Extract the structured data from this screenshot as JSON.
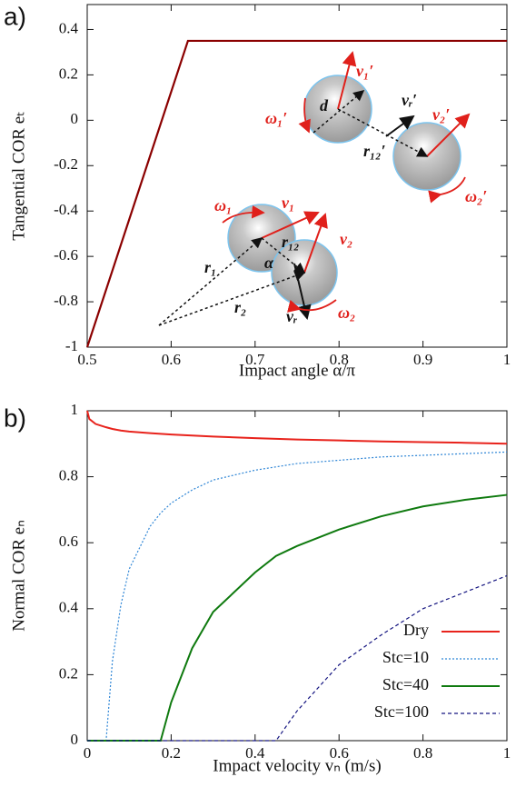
{
  "chart_data": [
    {
      "type": "line",
      "panel_label": "a)",
      "x_label": "Impact angle α/π",
      "y_label": "Tangential COR eₜ",
      "x": [
        0.5,
        0.62,
        1.0
      ],
      "series": [
        {
          "name": "e_t",
          "color": "#8b0000",
          "values": [
            -1,
            0.35,
            0.35
          ]
        }
      ],
      "xlim": [
        0.5,
        1.0
      ],
      "ylim": [
        -1,
        0.51
      ],
      "xticks": [
        0.5,
        0.6,
        0.7,
        0.8,
        0.9,
        1
      ],
      "yticks": [
        0.4,
        0.2,
        0,
        -0.2,
        -0.4,
        -0.6,
        -0.8,
        -1
      ],
      "annotations": [
        "v₁′",
        "d",
        "vᵣ′",
        "v₂′",
        "ω₁′",
        "r₁₂′",
        "ω₂′",
        "ω₁",
        "v₁",
        "v₂",
        "r₁₂",
        "r₁",
        "α",
        "r₂",
        "vᵣ",
        "ω₂"
      ]
    },
    {
      "type": "line",
      "panel_label": "b)",
      "x_label": "Impact velocity vₙ (m/s)",
      "y_label": "Normal COR eₙ",
      "x": [
        0,
        0.005,
        0.02,
        0.045,
        0.06,
        0.08,
        0.1,
        0.15,
        0.175,
        0.2,
        0.25,
        0.3,
        0.4,
        0.45,
        0.5,
        0.6,
        0.7,
        0.8,
        0.9,
        1.0
      ],
      "series": [
        {
          "name": "Dry",
          "color": "#e8231c",
          "dash": "solid",
          "width": 2,
          "values": [
            1.0,
            0.975,
            0.96,
            0.95,
            0.945,
            0.94,
            0.937,
            0.932,
            0.93,
            0.928,
            0.925,
            0.922,
            0.917,
            0.915,
            0.913,
            0.91,
            0.907,
            0.905,
            0.903,
            0.9
          ]
        },
        {
          "name": "Stc=10",
          "color": "#2f86d6",
          "dash": "dotted",
          "width": 1.2,
          "values": [
            0,
            0,
            0,
            0,
            0.24,
            0.41,
            0.52,
            0.65,
            0.69,
            0.72,
            0.76,
            0.79,
            0.82,
            0.83,
            0.84,
            0.85,
            0.86,
            0.865,
            0.87,
            0.875
          ]
        },
        {
          "name": "Stc=40",
          "color": "#0f7a0f",
          "dash": "solid",
          "width": 2,
          "values": [
            0,
            0,
            0,
            0,
            0,
            0,
            0,
            0,
            0,
            0.116,
            0.28,
            0.39,
            0.51,
            0.56,
            0.59,
            0.64,
            0.68,
            0.71,
            0.73,
            0.745
          ]
        },
        {
          "name": "Stc=100",
          "color": "#141480",
          "dash": "dashed",
          "width": 1.2,
          "values": [
            0,
            0,
            0,
            0,
            0,
            0,
            0,
            0,
            0,
            0,
            0,
            0,
            0,
            0,
            0.09,
            0.23,
            0.32,
            0.4,
            0.45,
            0.5
          ]
        }
      ],
      "xlim": [
        0,
        1.0
      ],
      "ylim": [
        0,
        1.0
      ],
      "xticks": [
        0,
        0.2,
        0.4,
        0.6,
        0.8,
        1
      ],
      "yticks": [
        0,
        0.2,
        0.4,
        0.6,
        0.8,
        1
      ],
      "legend": "lower right"
    }
  ]
}
